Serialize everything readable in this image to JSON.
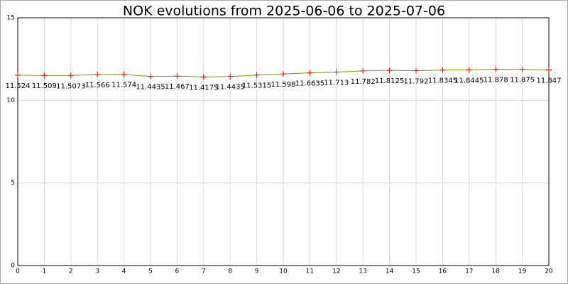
{
  "chart_data": {
    "type": "line",
    "title": "NOK evolutions from 2025-06-06 to 2025-07-06",
    "x": [
      0,
      1,
      2,
      3,
      4,
      5,
      6,
      7,
      8,
      9,
      10,
      11,
      12,
      13,
      14,
      15,
      16,
      17,
      18,
      19,
      20
    ],
    "series": [
      {
        "color": "#7a9a00",
        "marker_color": "#ff0000",
        "values": [
          11.524,
          11.509,
          11.5073,
          11.566,
          11.574,
          11.4435,
          11.467,
          11.4175,
          11.4435,
          11.5315,
          11.598,
          11.6635,
          11.713,
          11.782,
          11.8125,
          11.792,
          11.8345,
          11.8445,
          11.878,
          11.875,
          11.847
        ]
      }
    ],
    "xlim": [
      0,
      20
    ],
    "xticks": [
      0,
      1,
      2,
      3,
      4,
      5,
      6,
      7,
      8,
      9,
      10,
      11,
      12,
      13,
      14,
      15,
      16,
      17,
      18,
      19,
      20
    ],
    "ylim": [
      0,
      15
    ],
    "yticks": [
      0,
      5,
      10,
      15
    ],
    "grid": true
  }
}
